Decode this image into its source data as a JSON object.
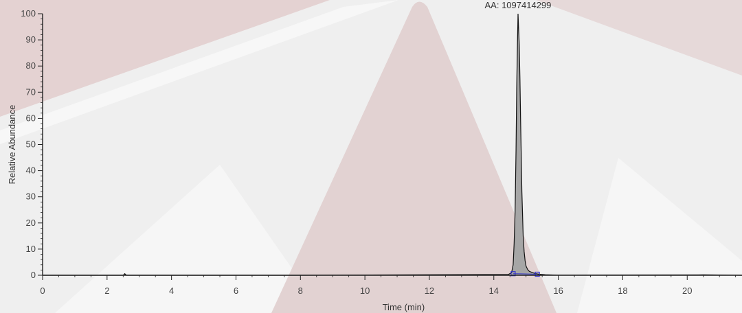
{
  "chart_data": {
    "type": "area",
    "xlabel": "Time (min)",
    "ylabel": "Relative Abundance",
    "xlim": [
      0,
      21.7
    ],
    "ylim": [
      0,
      100
    ],
    "x_ticks": [
      0,
      2,
      4,
      6,
      8,
      10,
      12,
      14,
      16,
      18,
      20
    ],
    "y_ticks": [
      0,
      10,
      20,
      30,
      40,
      50,
      60,
      70,
      80,
      90,
      100
    ],
    "annotations": [
      {
        "text": "AA: 1097414299",
        "x": 14.75,
        "y": 100
      }
    ],
    "series": [
      {
        "x": [
          0,
          2.5,
          2.55,
          2.6,
          7.9,
          14.45,
          14.55,
          14.6,
          14.63,
          14.66,
          14.69,
          14.71,
          14.73,
          14.75,
          14.77,
          14.79,
          14.81,
          14.83,
          14.85,
          14.87,
          14.89,
          14.91,
          14.94,
          14.97,
          15.0,
          15.05,
          15.1,
          15.2,
          15.3,
          15.4,
          15.6,
          16.0,
          20.5,
          21.7
        ],
        "y": [
          0,
          0,
          0.6,
          0,
          0,
          0.3,
          1,
          4,
          12,
          24,
          48,
          72,
          86,
          100,
          94,
          88,
          75,
          60,
          47,
          32,
          24,
          15,
          9,
          5.5,
          3.5,
          2.2,
          1.5,
          1.0,
          0.6,
          0.4,
          0.2,
          0.05,
          0.15,
          0
        ]
      }
    ],
    "markers": [
      {
        "x": 14.6,
        "y": 0.6
      },
      {
        "x": 15.35,
        "y": 0.4
      }
    ]
  },
  "colors": {
    "peak_fill": "#a6a6a6",
    "trace": "#111111",
    "marker": "#3333cc",
    "background": "#efefef"
  }
}
